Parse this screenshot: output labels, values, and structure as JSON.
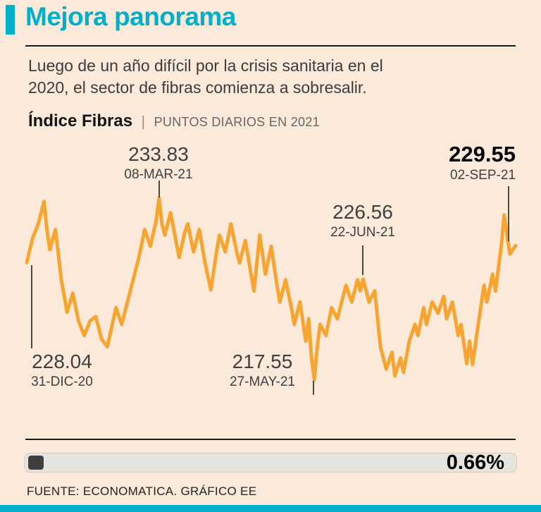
{
  "header": {
    "title": "Mejora panorama",
    "description": "Luego de un año difícil por la crisis sanitaria en el\n2020, el sector de fibras comienza a sobresalir."
  },
  "chart_header": {
    "title": "Índice Fibras",
    "separator": "|",
    "subtitle": "PUNTOS DIARIOS EN 2021"
  },
  "footer": {
    "change_pct": "0.66%",
    "source": "FUENTE: ECONOMATICA. GRÁFICO EE"
  },
  "colors": {
    "accent_teal": "#00b0ca",
    "line_orange": "#F7A430",
    "background": "#fbeada"
  },
  "chart_data": {
    "type": "line",
    "title": "Índice Fibras",
    "subtitle": "PUNTOS DIARIOS EN 2021",
    "x_range": [
      "31-DIC-20",
      "02-SEP-21"
    ],
    "ylim": [
      216.5,
      234.5
    ],
    "grid": false,
    "legend": false,
    "line_color": "#F7A430",
    "change_pct": "0.66%",
    "annotations": [
      {
        "id": "start",
        "value": "228.04",
        "date": "31-DIC-20"
      },
      {
        "id": "peak",
        "value": "233.83",
        "date": "08-MAR-21"
      },
      {
        "id": "low",
        "value": "217.55",
        "date": "27-MAY-21"
      },
      {
        "id": "jun",
        "value": "226.56",
        "date": "22-JUN-21"
      },
      {
        "id": "last",
        "value": "229.55",
        "date": "02-SEP-21"
      }
    ],
    "points": [
      [
        0,
        228.04
      ],
      [
        2,
        230.2
      ],
      [
        4,
        231.5
      ],
      [
        6,
        233.5
      ],
      [
        7,
        231.0
      ],
      [
        8,
        229.2
      ],
      [
        10,
        231.0
      ],
      [
        12,
        226.5
      ],
      [
        14,
        223.6
      ],
      [
        16,
        225.3
      ],
      [
        18,
        222.8
      ],
      [
        20,
        221.5
      ],
      [
        22,
        222.8
      ],
      [
        24,
        223.2
      ],
      [
        26,
        221.2
      ],
      [
        28,
        220.5
      ],
      [
        30,
        222.8
      ],
      [
        31,
        224.0
      ],
      [
        33,
        222.5
      ],
      [
        35,
        224.5
      ],
      [
        37,
        226.5
      ],
      [
        39,
        228.5
      ],
      [
        41,
        231.0
      ],
      [
        43,
        229.5
      ],
      [
        45,
        231.8
      ],
      [
        46,
        233.83
      ],
      [
        47,
        231.5
      ],
      [
        48,
        230.5
      ],
      [
        50,
        232.5
      ],
      [
        52,
        229.8
      ],
      [
        53,
        228.5
      ],
      [
        55,
        230.8
      ],
      [
        56,
        231.5
      ],
      [
        58,
        229.0
      ],
      [
        60,
        231.0
      ],
      [
        62,
        228.0
      ],
      [
        64,
        225.6
      ],
      [
        66,
        229.0
      ],
      [
        67,
        230.5
      ],
      [
        69,
        229.0
      ],
      [
        71,
        231.5
      ],
      [
        73,
        229.0
      ],
      [
        74,
        228.0
      ],
      [
        76,
        230.0
      ],
      [
        78,
        227.0
      ],
      [
        79,
        225.5
      ],
      [
        81,
        230.5
      ],
      [
        83,
        227.0
      ],
      [
        85,
        229.5
      ],
      [
        87,
        226.0
      ],
      [
        88,
        224.5
      ],
      [
        90,
        226.5
      ],
      [
        92,
        224.0
      ],
      [
        93,
        222.5
      ],
      [
        95,
        224.5
      ],
      [
        97,
        221.0
      ],
      [
        98,
        223.0
      ],
      [
        99,
        219.5
      ],
      [
        100,
        217.55
      ],
      [
        101,
        220.5
      ],
      [
        102,
        222.5
      ],
      [
        104,
        221.5
      ],
      [
        106,
        224.0
      ],
      [
        108,
        223.0
      ],
      [
        110,
        225.0
      ],
      [
        111,
        226.0
      ],
      [
        113,
        224.5
      ],
      [
        115,
        226.5
      ],
      [
        116,
        225.5
      ],
      [
        117,
        226.56
      ],
      [
        119,
        224.5
      ],
      [
        121,
        225.5
      ],
      [
        123,
        220.5
      ],
      [
        125,
        218.5
      ],
      [
        127,
        220.0
      ],
      [
        128,
        217.9
      ],
      [
        130,
        219.5
      ],
      [
        131,
        218.2
      ],
      [
        133,
        221.0
      ],
      [
        135,
        222.5
      ],
      [
        136,
        221.5
      ],
      [
        138,
        224.0
      ],
      [
        139,
        222.5
      ],
      [
        141,
        224.5
      ],
      [
        143,
        223.5
      ],
      [
        145,
        225.0
      ],
      [
        146,
        223.0
      ],
      [
        148,
        224.5
      ],
      [
        150,
        221.5
      ],
      [
        151,
        222.5
      ],
      [
        153,
        219.0
      ],
      [
        154,
        221.0
      ],
      [
        155,
        218.9
      ],
      [
        157,
        222.5
      ],
      [
        159,
        226.0
      ],
      [
        160,
        224.5
      ],
      [
        162,
        227.0
      ],
      [
        163,
        225.5
      ],
      [
        165,
        229.5
      ],
      [
        166,
        232.3
      ],
      [
        168,
        228.8
      ],
      [
        170,
        229.55
      ]
    ]
  }
}
